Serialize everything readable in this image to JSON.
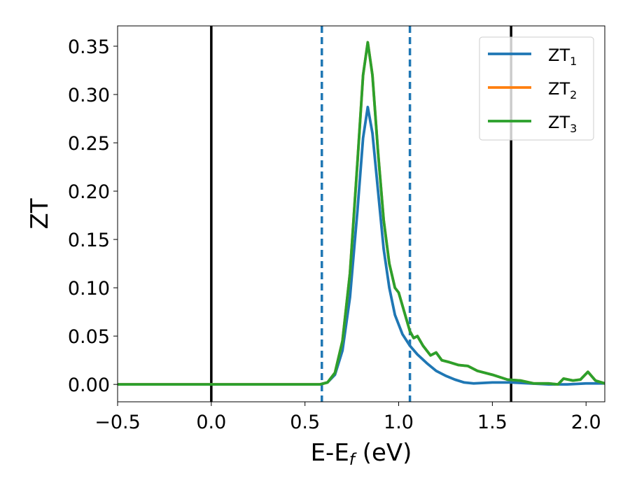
{
  "chart_data": {
    "type": "line",
    "xlabel": {
      "main": "E-E",
      "sub": "f",
      "tail": " (eV)"
    },
    "ylabel": "ZT",
    "xlim": [
      -0.5,
      2.1
    ],
    "ylim": [
      -0.018,
      0.371
    ],
    "grid": false,
    "legend_position": "top-right",
    "x_ticks": [
      -0.5,
      0.0,
      0.5,
      1.0,
      1.5,
      2.0
    ],
    "x_tick_labels": [
      "−0.5",
      "0.0",
      "0.5",
      "1.0",
      "1.5",
      "2.0"
    ],
    "y_ticks": [
      0.0,
      0.05,
      0.1,
      0.15,
      0.2,
      0.25,
      0.3,
      0.35
    ],
    "y_tick_labels": [
      "0.00",
      "0.05",
      "0.10",
      "0.15",
      "0.20",
      "0.25",
      "0.30",
      "0.35"
    ],
    "vertical_lines": [
      {
        "x": 0.0,
        "style": "solid",
        "color": "#000000"
      },
      {
        "x": 1.6,
        "style": "solid",
        "color": "#000000"
      },
      {
        "x": 0.59,
        "style": "dashed",
        "color": "#1f77b4"
      },
      {
        "x": 1.06,
        "style": "dashed",
        "color": "#1f77b4"
      }
    ],
    "series": [
      {
        "name": "ZT",
        "sub": "1",
        "color": "#1f77b4",
        "x": [
          -0.5,
          0.0,
          0.5,
          0.58,
          0.62,
          0.66,
          0.7,
          0.74,
          0.78,
          0.81,
          0.835,
          0.86,
          0.89,
          0.92,
          0.95,
          0.98,
          1.02,
          1.06,
          1.1,
          1.15,
          1.2,
          1.25,
          1.3,
          1.35,
          1.4,
          1.5,
          1.6,
          1.7,
          1.8,
          1.9,
          2.0,
          2.1
        ],
        "y": [
          0.0,
          0.0,
          0.0,
          0.0,
          0.002,
          0.01,
          0.035,
          0.09,
          0.18,
          0.255,
          0.287,
          0.26,
          0.2,
          0.14,
          0.1,
          0.072,
          0.052,
          0.04,
          0.031,
          0.022,
          0.014,
          0.009,
          0.005,
          0.002,
          0.001,
          0.002,
          0.002,
          0.001,
          0.0,
          0.0,
          0.001,
          0.001
        ]
      },
      {
        "name": "ZT",
        "sub": "2",
        "color": "#ff7f0e",
        "x": [
          -0.5,
          0.0,
          0.5,
          0.58,
          0.62,
          0.66,
          0.7,
          0.74,
          0.78,
          0.81,
          0.835,
          0.86,
          0.89,
          0.92,
          0.95,
          0.98,
          1.0,
          1.03,
          1.06,
          1.08,
          1.1,
          1.13,
          1.17,
          1.2,
          1.23,
          1.27,
          1.32,
          1.37,
          1.42,
          1.5,
          1.58,
          1.65,
          1.72,
          1.8,
          1.85,
          1.88,
          1.93,
          1.97,
          2.01,
          2.05,
          2.1
        ],
        "y": [
          0.0,
          0.0,
          0.0,
          0.0,
          0.002,
          0.012,
          0.045,
          0.115,
          0.23,
          0.32,
          0.354,
          0.32,
          0.24,
          0.17,
          0.125,
          0.1,
          0.095,
          0.075,
          0.055,
          0.048,
          0.05,
          0.04,
          0.03,
          0.033,
          0.025,
          0.023,
          0.02,
          0.019,
          0.014,
          0.01,
          0.005,
          0.004,
          0.001,
          0.001,
          0.0,
          0.006,
          0.004,
          0.005,
          0.013,
          0.004,
          0.001
        ]
      },
      {
        "name": "ZT",
        "sub": "3",
        "color": "#2ca02c",
        "x": [
          -0.5,
          0.0,
          0.5,
          0.58,
          0.62,
          0.66,
          0.7,
          0.74,
          0.78,
          0.81,
          0.835,
          0.86,
          0.89,
          0.92,
          0.95,
          0.98,
          1.0,
          1.03,
          1.06,
          1.08,
          1.1,
          1.13,
          1.17,
          1.2,
          1.23,
          1.27,
          1.32,
          1.37,
          1.42,
          1.5,
          1.58,
          1.65,
          1.72,
          1.8,
          1.85,
          1.88,
          1.93,
          1.97,
          2.01,
          2.05,
          2.1
        ],
        "y": [
          0.0,
          0.0,
          0.0,
          0.0,
          0.002,
          0.012,
          0.045,
          0.115,
          0.23,
          0.32,
          0.354,
          0.32,
          0.24,
          0.17,
          0.125,
          0.1,
          0.095,
          0.075,
          0.055,
          0.048,
          0.05,
          0.04,
          0.03,
          0.033,
          0.025,
          0.023,
          0.02,
          0.019,
          0.014,
          0.01,
          0.005,
          0.004,
          0.001,
          0.001,
          0.0,
          0.006,
          0.004,
          0.005,
          0.013,
          0.004,
          0.001
        ]
      }
    ]
  }
}
